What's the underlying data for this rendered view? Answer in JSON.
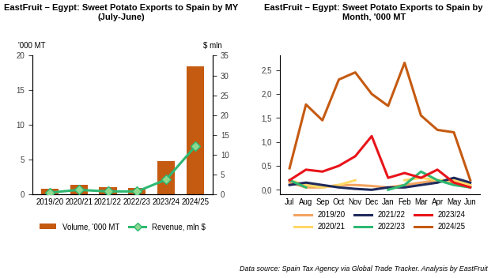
{
  "source": "Data source: Spain Tax Agency via Global Trade Tracker. Analysis by EastFruit",
  "chart_data": [
    {
      "type": "bar",
      "title": "EastFruit – Egypt: Sweet Potato Exports to Spain by MY (July-June)",
      "y_label": "'000 MT",
      "y2_label": "$ mln",
      "categories": [
        "2019/20",
        "2020/21",
        "2021/22",
        "2022/23",
        "2023/24",
        "2024/25"
      ],
      "series": [
        {
          "name": "Volume, '000 MT",
          "type": "bar",
          "color": "#c55a11",
          "values": [
            0.8,
            1.4,
            1.1,
            0.9,
            4.8,
            18.4
          ]
        },
        {
          "name": "Revenue, mln $",
          "type": "line",
          "color": "#2eb872",
          "marker": "diamond",
          "line_style": "solid",
          "axis": "y2",
          "values": [
            0.5,
            1.2,
            0.8,
            0.8,
            3.8,
            12.2
          ]
        }
      ],
      "ylim": [
        0,
        20
      ],
      "yticks": [
        0,
        5,
        10,
        15,
        20
      ],
      "y2lim": [
        0,
        35
      ],
      "y2ticks": [
        0,
        5,
        10,
        15,
        20,
        25,
        30,
        35
      ],
      "legend": "lower center",
      "grid": false
    },
    {
      "type": "line",
      "title": "EastFruit – Egypt: Sweet Potato Exports to Spain by Month, '000 MT",
      "categories": [
        "Jul",
        "Aug",
        "Sep",
        "Oct",
        "Nov",
        "Dec",
        "Jan",
        "Feb",
        "Mar",
        "Apr",
        "May",
        "Jun"
      ],
      "series": [
        {
          "name": "2019/20",
          "color": "#f4a460",
          "line_style": "solid",
          "values": [
            0.15,
            0.05,
            0.05,
            0.1,
            0.1,
            0.08,
            0.05,
            0.1,
            0.15,
            0.2,
            0.15,
            0.1
          ]
        },
        {
          "name": "2020/21",
          "color": "#ffd966",
          "line_style": "solid",
          "values": [
            0.2,
            0.1,
            0.05,
            0.1,
            0.2,
            null,
            null,
            0.2,
            0.25,
            0.2,
            0.2,
            0.1
          ]
        },
        {
          "name": "2021/22",
          "color": "#1f2a5c",
          "line_style": "solid",
          "values": [
            0.1,
            0.15,
            0.1,
            0.05,
            0.02,
            0.0,
            0.05,
            0.05,
            0.1,
            0.15,
            0.25,
            0.15
          ]
        },
        {
          "name": "2022/23",
          "color": "#2eb872",
          "line_style": "solid",
          "values": [
            0.2,
            0.05,
            null,
            null,
            null,
            null,
            0.0,
            0.1,
            0.38,
            0.2,
            0.1,
            0.05
          ]
        },
        {
          "name": "2023/24",
          "color": "#e8141a",
          "line_style": "solid",
          "values": [
            0.2,
            0.42,
            0.38,
            0.5,
            0.7,
            1.12,
            0.25,
            0.35,
            0.25,
            0.42,
            0.15,
            0.05
          ]
        },
        {
          "name": "2024/25",
          "color": "#c55a11",
          "line_style": "solid",
          "values": [
            0.45,
            1.78,
            1.45,
            2.3,
            2.45,
            2.0,
            1.75,
            2.65,
            1.55,
            1.25,
            1.2,
            0.2
          ]
        }
      ],
      "ylim": [
        -0.1,
        2.8
      ],
      "yticks": [
        {
          "value": 0,
          "label": "0,0"
        },
        {
          "value": 0.5,
          "label": "0,5"
        },
        {
          "value": 1,
          "label": "1,0"
        },
        {
          "value": 1.5,
          "label": "1,5"
        },
        {
          "value": 2,
          "label": "2,0"
        },
        {
          "value": 2.5,
          "label": "2,5"
        }
      ],
      "legend": "lower center",
      "grid": false
    }
  ]
}
